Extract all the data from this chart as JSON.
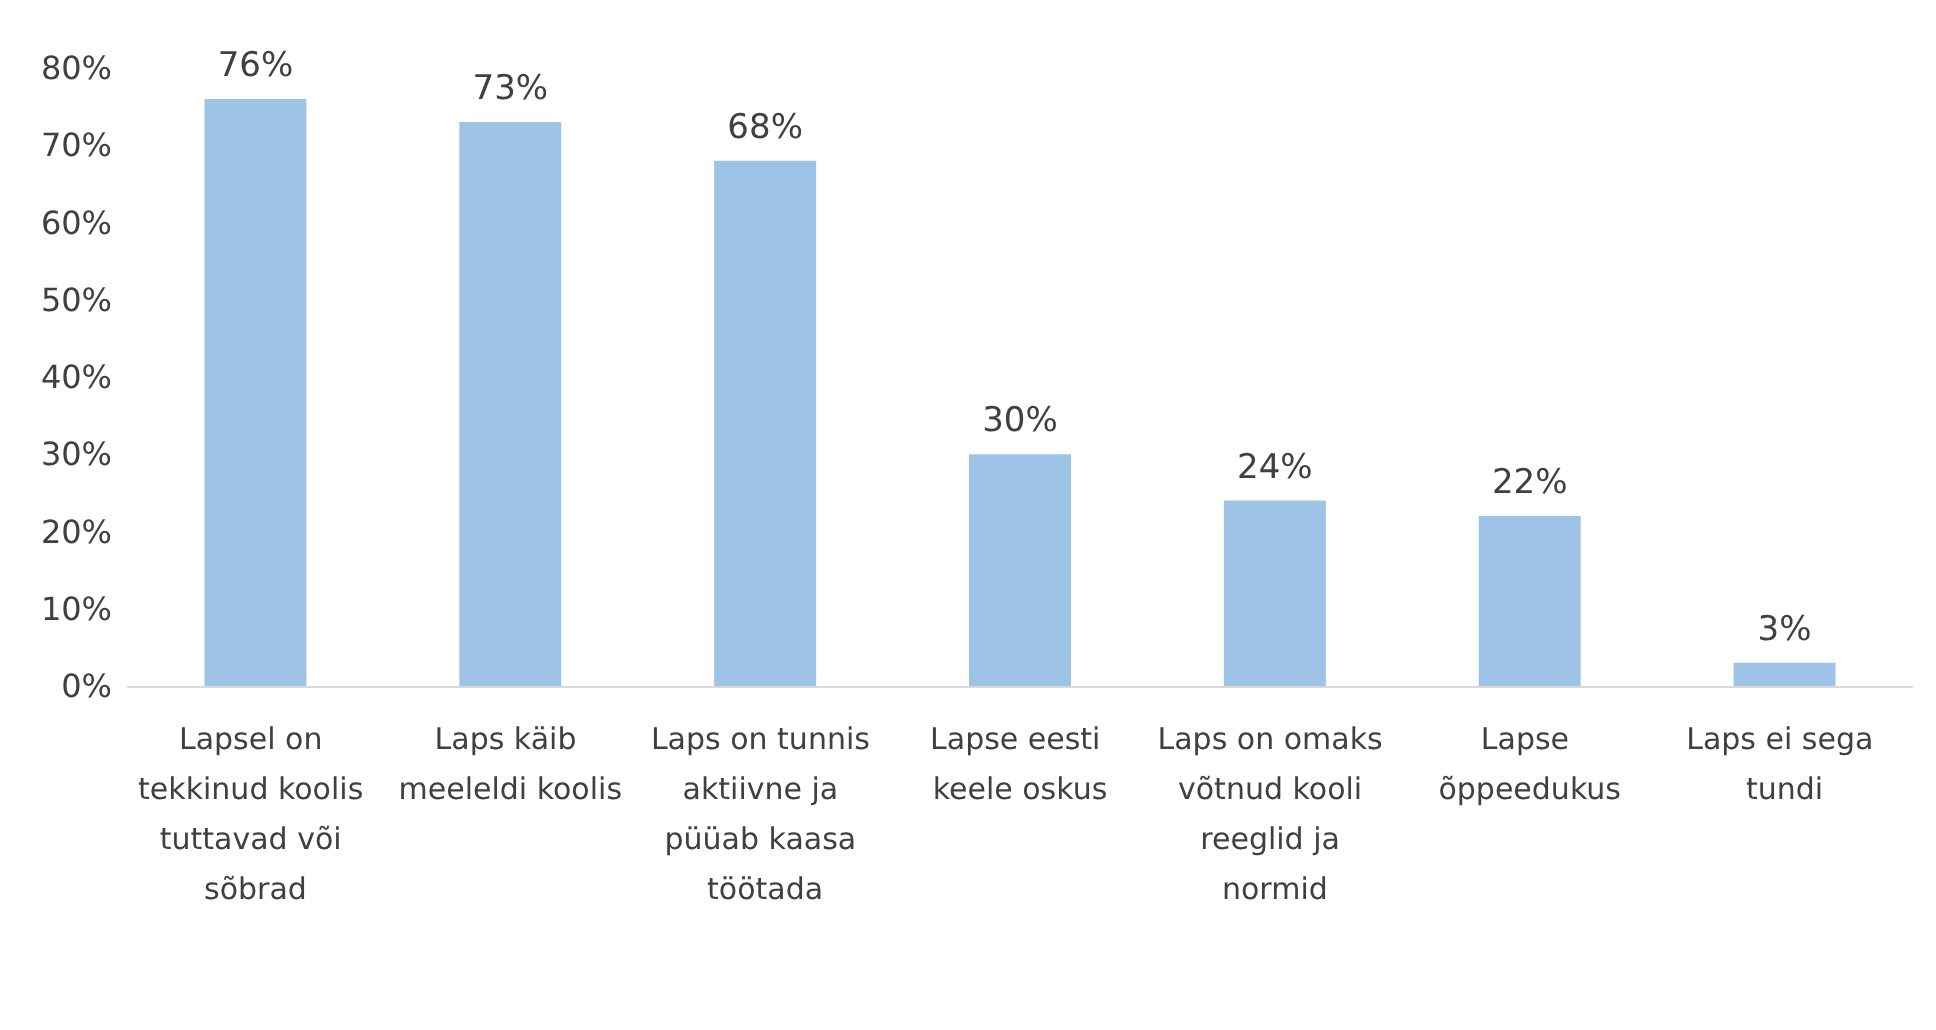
{
  "chart_data": {
    "type": "bar",
    "categories": [
      "Lapsel on tekkinud koolis tuttavad või sõbrad",
      "Laps käib meeleldi koolis",
      "Laps on tunnis aktiivne ja püüab kaasa töötada",
      "Lapse eesti keele oskus",
      "Laps on omaks võtnud kooli reeglid ja normid",
      "Lapse õppeedukus",
      "Laps ei sega tundi"
    ],
    "values": [
      76,
      73,
      68,
      30,
      24,
      22,
      3
    ],
    "value_labels": [
      "76%",
      "73%",
      "68%",
      "30%",
      "24%",
      "22%",
      "3%"
    ],
    "color": "#9dc3e6",
    "ylim": [
      0,
      80
    ],
    "yticks": [
      {
        "value": 0,
        "label": "0%"
      },
      {
        "value": 10,
        "label": "10%"
      },
      {
        "value": 20,
        "label": "20%"
      },
      {
        "value": 30,
        "label": "30%"
      },
      {
        "value": 40,
        "label": "40%"
      },
      {
        "value": 50,
        "label": "50%"
      },
      {
        "value": 60,
        "label": "60%"
      },
      {
        "value": 70,
        "label": "70%"
      },
      {
        "value": 80,
        "label": "80%"
      }
    ],
    "grid": false
  }
}
